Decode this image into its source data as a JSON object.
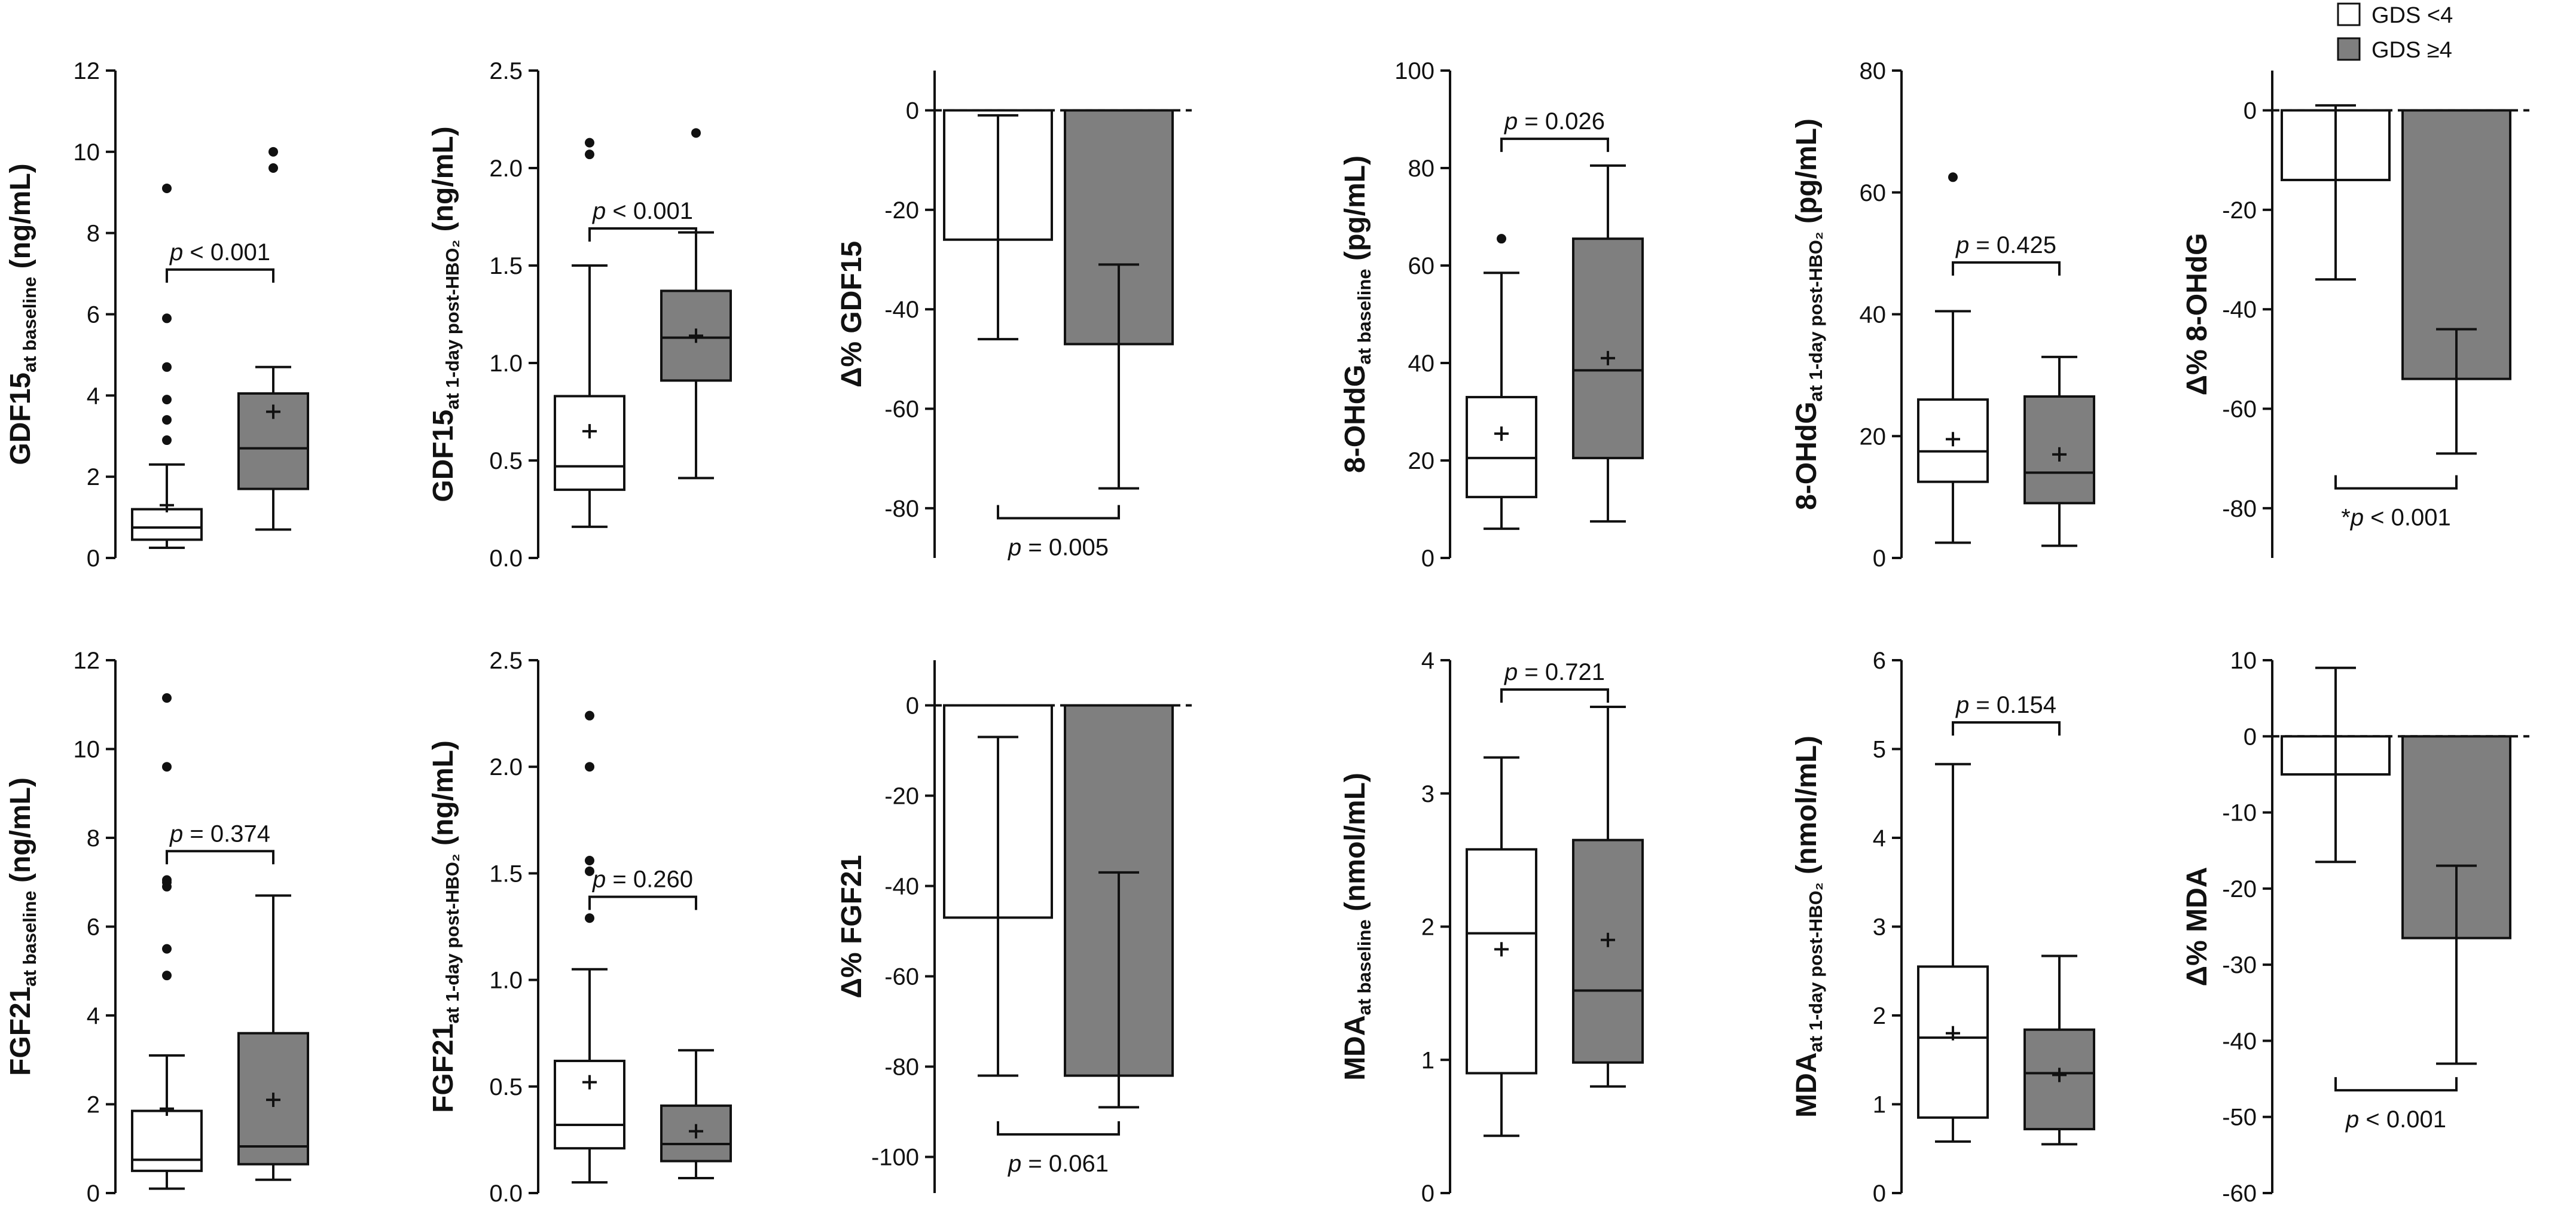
{
  "legend": [
    {
      "label": "GDS <4",
      "color": "#ffffff"
    },
    {
      "label": "GDS ≥4",
      "color": "#7f7f7f"
    }
  ],
  "colors": {
    "group1_fill": "#ffffff",
    "group2_fill": "#7f7f7f",
    "line": "#111111"
  },
  "chart_data": [
    {
      "id": "gdf15-baseline",
      "type": "box",
      "ylabel": {
        "main": "GDF15",
        "sub": "at baseline",
        "unit": " (ng/mL)"
      },
      "ylim": [
        0,
        12
      ],
      "yticks": [
        0,
        2,
        4,
        6,
        8,
        10,
        12
      ],
      "tick_labels": [
        "0",
        "2",
        "4",
        "6",
        "8",
        "10",
        "12"
      ],
      "groups": [
        {
          "name": "GDS <4",
          "whisker_low": 0.25,
          "q1": 0.45,
          "median": 0.75,
          "q3": 1.2,
          "whisker_high": 2.3,
          "mean": 1.3,
          "outliers": [
            2.9,
            3.4,
            3.9,
            4.7,
            5.9,
            9.1
          ]
        },
        {
          "name": "GDS ≥4",
          "whisker_low": 0.7,
          "q1": 1.7,
          "median": 2.7,
          "q3": 4.05,
          "whisker_high": 4.7,
          "mean": 3.6,
          "outliers": [
            9.6,
            10.0
          ]
        }
      ],
      "pvalue": {
        "prefix": "",
        "p": "p",
        "rest": " < 0.001",
        "y": 7.1,
        "tick_dir": "down"
      }
    },
    {
      "id": "gdf15-post",
      "type": "box",
      "ylabel": {
        "main": "GDF15",
        "sub": "at 1-day post-HBO₂",
        "unit": " (ng/mL)"
      },
      "ylim": [
        0,
        2.5
      ],
      "yticks": [
        0,
        0.5,
        1.0,
        1.5,
        2.0,
        2.5
      ],
      "tick_labels": [
        "0.0",
        "0.5",
        "1.0",
        "1.5",
        "2.0",
        "2.5"
      ],
      "groups": [
        {
          "name": "GDS <4",
          "whisker_low": 0.16,
          "q1": 0.35,
          "median": 0.47,
          "q3": 0.83,
          "whisker_high": 1.5,
          "mean": 0.65,
          "outliers": [
            2.07,
            2.13
          ]
        },
        {
          "name": "GDS ≥4",
          "whisker_low": 0.41,
          "q1": 0.91,
          "median": 1.13,
          "q3": 1.37,
          "whisker_high": 1.67,
          "mean": 1.14,
          "outliers": [
            2.18
          ]
        }
      ],
      "pvalue": {
        "prefix": "",
        "p": "p",
        "rest": " < 0.001",
        "y": 1.69,
        "tick_dir": "down"
      }
    },
    {
      "id": "delta-gdf15",
      "type": "bar",
      "ylabel": {
        "main": "Δ% GDF15",
        "sub": "",
        "unit": ""
      },
      "ylim": [
        -90,
        8
      ],
      "yticks": [
        0,
        -20,
        -40,
        -60,
        -80
      ],
      "tick_labels": [
        "0",
        "-20",
        "-40",
        "-60",
        "-80"
      ],
      "groups": [
        {
          "name": "GDS <4",
          "value": -26,
          "err_low": -46,
          "err_high": -1
        },
        {
          "name": "GDS ≥4",
          "value": -47,
          "err_low": -76,
          "err_high": -31
        }
      ],
      "pvalue": {
        "prefix": "",
        "p": "p",
        "rest": " = 0.005",
        "y": -82,
        "tick_dir": "up"
      }
    },
    {
      "id": "ohdg-baseline",
      "type": "box",
      "ylabel": {
        "main": "8-OHdG",
        "sub": "at baseline",
        "unit": " (pg/mL)"
      },
      "ylim": [
        0,
        100
      ],
      "yticks": [
        0,
        20,
        40,
        60,
        80,
        100
      ],
      "tick_labels": [
        "0",
        "20",
        "40",
        "60",
        "80",
        "100"
      ],
      "groups": [
        {
          "name": "GDS <4",
          "whisker_low": 6,
          "q1": 12.5,
          "median": 20.5,
          "q3": 33,
          "whisker_high": 58.5,
          "mean": 25.5,
          "outliers": [
            65.5
          ]
        },
        {
          "name": "GDS ≥4",
          "whisker_low": 7.5,
          "q1": 20.5,
          "median": 38.5,
          "q3": 65.5,
          "whisker_high": 80.5,
          "mean": 41,
          "outliers": []
        }
      ],
      "pvalue": {
        "prefix": "",
        "p": "p",
        "rest": " = 0.026",
        "y": 86,
        "tick_dir": "down"
      }
    },
    {
      "id": "ohdg-post",
      "type": "box",
      "ylabel": {
        "main": "8-OHdG",
        "sub": "at 1-day post-HBO₂",
        "unit": " (pg/mL)"
      },
      "ylim": [
        0,
        80
      ],
      "yticks": [
        0,
        20,
        40,
        60,
        80
      ],
      "tick_labels": [
        "0",
        "20",
        "40",
        "60",
        "80"
      ],
      "groups": [
        {
          "name": "GDS <4",
          "whisker_low": 2.5,
          "q1": 12.5,
          "median": 17.5,
          "q3": 26,
          "whisker_high": 40.5,
          "mean": 19.5,
          "outliers": [
            62.5
          ]
        },
        {
          "name": "GDS ≥4",
          "whisker_low": 2,
          "q1": 9,
          "median": 14,
          "q3": 26.5,
          "whisker_high": 33,
          "mean": 17,
          "outliers": []
        }
      ],
      "pvalue": {
        "prefix": "",
        "p": "p",
        "rest": " = 0.425",
        "y": 48.5,
        "tick_dir": "down"
      }
    },
    {
      "id": "delta-ohdg",
      "type": "bar",
      "ylabel": {
        "main": "Δ% 8-OHdG",
        "sub": "",
        "unit": ""
      },
      "ylim": [
        -90,
        8
      ],
      "yticks": [
        0,
        -20,
        -40,
        -60,
        -80
      ],
      "tick_labels": [
        "0",
        "-20",
        "-40",
        "-60",
        "-80"
      ],
      "groups": [
        {
          "name": "GDS <4",
          "value": -14,
          "err_low": -34,
          "err_high": 1
        },
        {
          "name": "GDS ≥4",
          "value": -54,
          "err_low": -69,
          "err_high": -44
        }
      ],
      "pvalue": {
        "prefix": "*",
        "p": "p",
        "rest": " < 0.001",
        "y": -76,
        "tick_dir": "up"
      }
    },
    {
      "id": "fgf21-baseline",
      "type": "box",
      "ylabel": {
        "main": "FGF21",
        "sub": "at baseline",
        "unit": " (ng/mL)"
      },
      "ylim": [
        0,
        12
      ],
      "yticks": [
        0,
        2,
        4,
        6,
        8,
        10,
        12
      ],
      "tick_labels": [
        "0",
        "2",
        "4",
        "6",
        "8",
        "10",
        "12"
      ],
      "groups": [
        {
          "name": "GDS <4",
          "whisker_low": 0.1,
          "q1": 0.5,
          "median": 0.75,
          "q3": 1.85,
          "whisker_high": 3.1,
          "mean": 1.9,
          "outliers": [
            4.9,
            5.5,
            6.9,
            7.0,
            7.05,
            9.6,
            11.15
          ]
        },
        {
          "name": "GDS ≥4",
          "whisker_low": 0.3,
          "q1": 0.65,
          "median": 1.05,
          "q3": 3.6,
          "whisker_high": 6.7,
          "mean": 2.1,
          "outliers": []
        }
      ],
      "pvalue": {
        "prefix": "",
        "p": "p",
        "rest": " = 0.374",
        "y": 7.7,
        "tick_dir": "down"
      }
    },
    {
      "id": "fgf21-post",
      "type": "box",
      "ylabel": {
        "main": "FGF21",
        "sub": "at 1-day post-HBO₂",
        "unit": " (ng/mL)"
      },
      "ylim": [
        0,
        2.5
      ],
      "yticks": [
        0,
        0.5,
        1.0,
        1.5,
        2.0,
        2.5
      ],
      "tick_labels": [
        "0.0",
        "0.5",
        "1.0",
        "1.5",
        "2.0",
        "2.5"
      ],
      "groups": [
        {
          "name": "GDS <4",
          "whisker_low": 0.05,
          "q1": 0.21,
          "median": 0.32,
          "q3": 0.62,
          "whisker_high": 1.05,
          "mean": 0.52,
          "outliers": [
            1.29,
            1.51,
            1.56,
            2.0,
            2.24
          ]
        },
        {
          "name": "GDS ≥4",
          "whisker_low": 0.07,
          "q1": 0.15,
          "median": 0.23,
          "q3": 0.41,
          "whisker_high": 0.67,
          "mean": 0.29,
          "outliers": []
        }
      ],
      "pvalue": {
        "prefix": "",
        "p": "p",
        "rest": " = 0.260",
        "y": 1.39,
        "tick_dir": "down"
      }
    },
    {
      "id": "delta-fgf21",
      "type": "bar",
      "ylabel": {
        "main": "Δ% FGF21",
        "sub": "",
        "unit": ""
      },
      "ylim": [
        -108,
        10
      ],
      "yticks": [
        0,
        -20,
        -40,
        -60,
        -80,
        -100
      ],
      "tick_labels": [
        "0",
        "-20",
        "-40",
        "-60",
        "-80",
        "-100"
      ],
      "groups": [
        {
          "name": "GDS <4",
          "value": -47,
          "err_low": -82,
          "err_high": -7
        },
        {
          "name": "GDS ≥4",
          "value": -82,
          "err_low": -89,
          "err_high": -37
        }
      ],
      "pvalue": {
        "prefix": "",
        "p": "p",
        "rest": " = 0.061",
        "y": -95,
        "tick_dir": "up"
      }
    },
    {
      "id": "mda-baseline",
      "type": "box",
      "ylabel": {
        "main": "MDA",
        "sub": "at baseline",
        "unit": " (nmol/mL)"
      },
      "ylim": [
        0,
        4
      ],
      "yticks": [
        0,
        1,
        2,
        3,
        4
      ],
      "tick_labels": [
        "0",
        "1",
        "2",
        "3",
        "4"
      ],
      "groups": [
        {
          "name": "GDS <4",
          "whisker_low": 0.43,
          "q1": 0.9,
          "median": 1.95,
          "q3": 2.58,
          "whisker_high": 3.27,
          "mean": 1.83,
          "outliers": []
        },
        {
          "name": "GDS ≥4",
          "whisker_low": 0.8,
          "q1": 0.98,
          "median": 1.52,
          "q3": 2.65,
          "whisker_high": 3.65,
          "mean": 1.9,
          "outliers": []
        }
      ],
      "pvalue": {
        "prefix": "",
        "p": "p",
        "rest": " = 0.721",
        "y": 3.78,
        "tick_dir": "down"
      }
    },
    {
      "id": "mda-post",
      "type": "box",
      "ylabel": {
        "main": "MDA",
        "sub": "at 1-day post-HBO₂",
        "unit": " (nmol/mL)"
      },
      "ylim": [
        0,
        6
      ],
      "yticks": [
        0,
        1,
        2,
        3,
        4,
        5,
        6
      ],
      "tick_labels": [
        "0",
        "1",
        "2",
        "3",
        "4",
        "5",
        "6"
      ],
      "groups": [
        {
          "name": "GDS <4",
          "whisker_low": 0.58,
          "q1": 0.85,
          "median": 1.75,
          "q3": 2.55,
          "whisker_high": 4.83,
          "mean": 1.8,
          "outliers": []
        },
        {
          "name": "GDS ≥4",
          "whisker_low": 0.55,
          "q1": 0.72,
          "median": 1.35,
          "q3": 1.84,
          "whisker_high": 2.67,
          "mean": 1.33,
          "outliers": []
        }
      ],
      "pvalue": {
        "prefix": "",
        "p": "p",
        "rest": " = 0.154",
        "y": 5.3,
        "tick_dir": "down"
      }
    },
    {
      "id": "delta-mda",
      "type": "bar",
      "ylabel": {
        "main": "Δ% MDA",
        "sub": "",
        "unit": ""
      },
      "ylim": [
        -60,
        10
      ],
      "yticks": [
        10,
        0,
        -10,
        -20,
        -30,
        -40,
        -50,
        -60
      ],
      "tick_labels": [
        "10",
        "0",
        "-10",
        "-20",
        "-30",
        "-40",
        "-50",
        "-60"
      ],
      "groups": [
        {
          "name": "GDS <4",
          "value": -5,
          "err_low": -16.5,
          "err_high": 9
        },
        {
          "name": "GDS ≥4",
          "value": -26.5,
          "err_low": -43,
          "err_high": -17
        }
      ],
      "pvalue": {
        "prefix": "",
        "p": "p",
        "rest": " < 0.001",
        "y": -46.5,
        "tick_dir": "up"
      }
    }
  ]
}
